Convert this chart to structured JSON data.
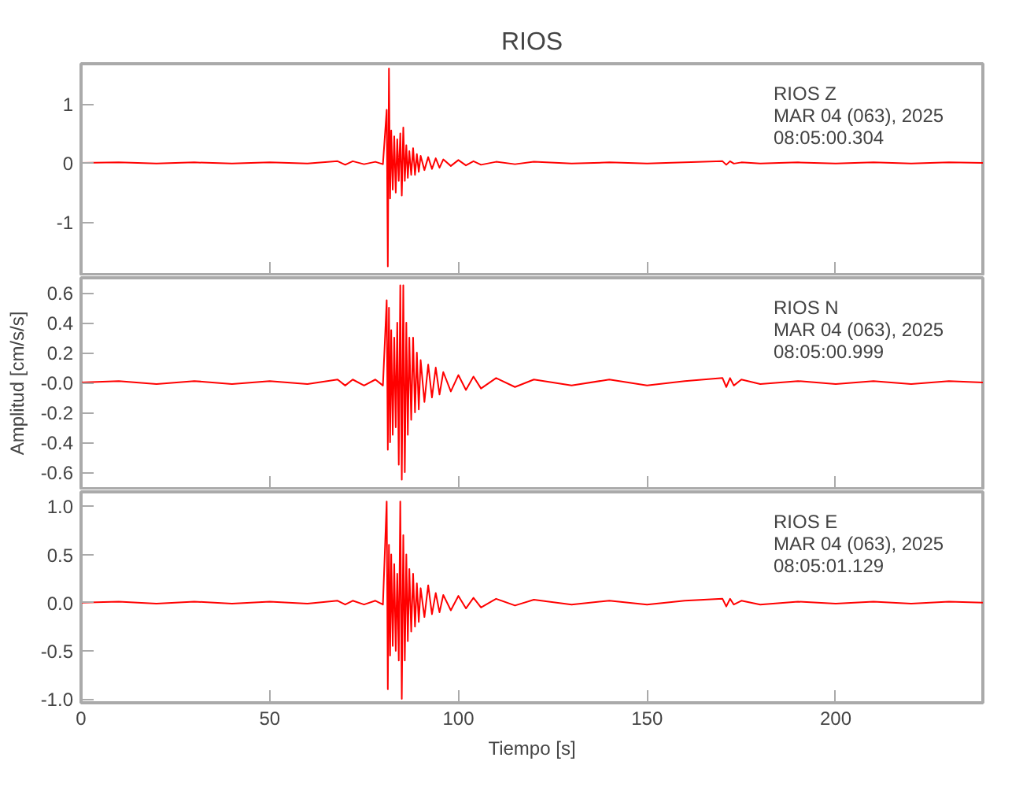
{
  "chart_data": [
    {
      "type": "line",
      "title": "RIOS",
      "tick_labels": "y",
      "xlim": [
        0,
        239
      ],
      "xticks": [
        0,
        50,
        100,
        150,
        200
      ],
      "ylim": [
        -1.89,
        1.68
      ],
      "yticks": [
        -1,
        0,
        1
      ],
      "grid": false,
      "annotations": [
        "RIOS   Z",
        "MAR 04 (063), 2025",
        "08:05:00.304"
      ],
      "x": [
        0,
        10,
        20,
        30,
        40,
        50,
        60,
        68,
        70,
        72,
        75,
        78,
        80,
        81.0,
        81.3,
        81.6,
        81.9,
        82.2,
        82.6,
        83,
        83.4,
        83.8,
        84.2,
        84.6,
        85,
        85.4,
        85.8,
        86.2,
        86.6,
        87,
        87.5,
        88,
        88.5,
        89,
        89.5,
        90,
        91,
        92,
        93,
        94,
        95,
        96,
        98,
        100,
        102,
        104,
        106,
        110,
        115,
        120,
        130,
        140,
        150,
        160,
        170,
        171,
        172,
        173,
        175,
        180,
        190,
        200,
        210,
        220,
        230,
        239
      ],
      "series": [
        {
          "color": "#ff0000",
          "values": [
            0,
            0.01,
            -0.01,
            0.01,
            -0.01,
            0.01,
            -0.01,
            0.03,
            -0.03,
            0.03,
            -0.02,
            0.02,
            -0.02,
            0.9,
            -1.75,
            1.6,
            -0.6,
            0.55,
            -0.45,
            0.45,
            -0.5,
            0.4,
            -0.3,
            0.5,
            -0.55,
            0.6,
            -0.3,
            0.3,
            -0.25,
            0.2,
            -0.2,
            0.25,
            -0.2,
            0.15,
            -0.15,
            0.12,
            -0.12,
            0.1,
            -0.1,
            0.08,
            -0.08,
            0.06,
            -0.05,
            0.05,
            -0.04,
            0.03,
            -0.03,
            0.02,
            -0.02,
            0.02,
            -0.01,
            0.01,
            -0.01,
            0.01,
            0.03,
            -0.03,
            0.03,
            -0.01,
            0.01,
            -0.01,
            0.01,
            -0.01,
            0.01,
            -0.01,
            0.01,
            0
          ]
        }
      ]
    },
    {
      "type": "line",
      "ylabel": "Amplitud [cm/s/s]",
      "tick_labels": "y",
      "xlim": [
        0,
        239
      ],
      "xticks": [
        0,
        50,
        100,
        150,
        200
      ],
      "ylim": [
        -0.71,
        0.7
      ],
      "yticks": [
        -0.6,
        -0.4,
        -0.2,
        {
          "value": 0,
          "label": "-0.0"
        },
        0.2,
        0.4,
        0.6
      ],
      "grid": false,
      "annotations": [
        "RIOS   N",
        "MAR 04 (063), 2025",
        "08:05:00.999"
      ],
      "x": [
        0,
        10,
        20,
        30,
        40,
        50,
        60,
        68,
        70,
        72,
        75,
        78,
        80,
        81.0,
        81.3,
        81.6,
        81.9,
        82.2,
        82.6,
        83,
        83.4,
        83.8,
        84.2,
        84.6,
        85,
        85.4,
        85.8,
        86.2,
        86.6,
        87,
        87.5,
        88,
        88.5,
        89,
        89.5,
        90,
        91,
        92,
        93,
        94,
        95,
        96,
        98,
        100,
        102,
        104,
        106,
        110,
        115,
        120,
        130,
        140,
        150,
        160,
        170,
        171,
        172,
        173,
        175,
        180,
        190,
        200,
        210,
        220,
        230,
        239
      ],
      "series": [
        {
          "color": "#ff0000",
          "values": [
            0,
            0.01,
            -0.01,
            0.01,
            -0.01,
            0.01,
            -0.01,
            0.02,
            -0.02,
            0.02,
            -0.02,
            0.02,
            -0.02,
            0.55,
            -0.45,
            0.5,
            -0.4,
            0.35,
            -0.35,
            0.3,
            -0.3,
            0.4,
            -0.55,
            0.65,
            -0.65,
            0.65,
            -0.6,
            0.4,
            -0.35,
            0.3,
            -0.25,
            0.3,
            -0.2,
            0.2,
            -0.18,
            0.15,
            -0.13,
            0.12,
            -0.1,
            0.1,
            -0.08,
            0.07,
            -0.06,
            0.05,
            -0.05,
            0.04,
            -0.04,
            0.03,
            -0.03,
            0.02,
            -0.02,
            0.02,
            -0.02,
            0.01,
            0.03,
            -0.03,
            0.03,
            -0.02,
            0.02,
            -0.01,
            0.01,
            -0.01,
            0.01,
            -0.01,
            0.01,
            0
          ]
        }
      ]
    },
    {
      "type": "line",
      "xlabel": "Tiempo [s]",
      "xlim": [
        0,
        239
      ],
      "xticks": [
        0,
        50,
        100,
        150,
        200
      ],
      "ylim": [
        -1.04,
        1.15
      ],
      "yticks": [
        {
          "value": -1,
          "label": "-1.0"
        },
        -0.5,
        {
          "value": 0,
          "label": "0.0"
        },
        0.5,
        {
          "value": 1,
          "label": "1.0"
        }
      ],
      "grid": false,
      "annotations": [
        "RIOS   E",
        "MAR 04 (063), 2025",
        "08:05:01.129"
      ],
      "x": [
        0,
        10,
        20,
        30,
        40,
        50,
        60,
        68,
        70,
        72,
        75,
        78,
        80,
        81.0,
        81.3,
        81.6,
        81.9,
        82.2,
        82.6,
        83,
        83.4,
        83.8,
        84.2,
        84.6,
        85,
        85.4,
        85.8,
        86.2,
        86.6,
        87,
        87.5,
        88,
        88.5,
        89,
        89.5,
        90,
        91,
        92,
        93,
        94,
        95,
        96,
        98,
        100,
        102,
        104,
        106,
        110,
        115,
        120,
        130,
        140,
        150,
        160,
        170,
        171,
        172,
        173,
        175,
        180,
        190,
        200,
        210,
        220,
        230,
        239
      ],
      "series": [
        {
          "color": "#ff0000",
          "values": [
            0,
            0.01,
            -0.01,
            0.01,
            -0.01,
            0.01,
            -0.01,
            0.02,
            -0.02,
            0.02,
            -0.02,
            0.02,
            -0.02,
            1.05,
            -0.9,
            0.6,
            -0.55,
            0.5,
            -0.45,
            0.4,
            -0.5,
            0.3,
            -0.6,
            1.05,
            -1.0,
            0.7,
            -0.6,
            0.5,
            -0.4,
            0.35,
            -0.3,
            0.3,
            -0.25,
            0.2,
            -0.2,
            0.15,
            -0.15,
            0.18,
            -0.12,
            0.1,
            -0.1,
            0.08,
            -0.08,
            0.07,
            -0.06,
            0.05,
            -0.05,
            0.04,
            -0.03,
            0.03,
            -0.02,
            0.02,
            -0.02,
            0.02,
            0.04,
            -0.04,
            0.04,
            -0.02,
            0.02,
            -0.02,
            0.01,
            -0.01,
            0.01,
            -0.01,
            0.01,
            0
          ]
        }
      ]
    }
  ]
}
